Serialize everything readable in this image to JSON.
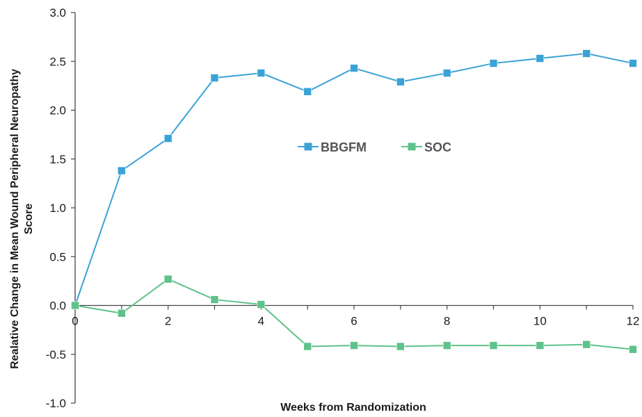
{
  "chart_data": {
    "type": "line",
    "xlabel": "Weeks from Randomization",
    "ylabel_lines": [
      "Realative Change in Mean Wound Peripheral Neuropathy",
      "Score"
    ],
    "xlim": [
      0,
      12
    ],
    "ylim": [
      -1.0,
      3.0
    ],
    "xticks": [
      0,
      2,
      4,
      6,
      8,
      10,
      12
    ],
    "xtick_labels": [
      "0",
      "2",
      "4",
      "6",
      "8",
      "10",
      "12"
    ],
    "yticks": [
      -1.0,
      -0.5,
      0.0,
      0.5,
      1.0,
      1.5,
      2.0,
      2.5,
      3.0
    ],
    "ytick_labels": [
      "-1.0",
      "-0.5",
      "0.0",
      "0.5",
      "1.0",
      "1.5",
      "2.0",
      "2.5",
      "3.0"
    ],
    "grid": false,
    "legend_position": "center",
    "x": [
      0,
      1,
      2,
      3,
      4,
      5,
      6,
      7,
      8,
      9,
      10,
      11,
      12
    ],
    "series": [
      {
        "name": "BBGFM",
        "color": "#3aa3d6",
        "marker": "square",
        "values": [
          0.0,
          1.38,
          1.71,
          2.33,
          2.38,
          2.19,
          2.43,
          2.29,
          2.38,
          2.48,
          2.53,
          2.58,
          2.48
        ]
      },
      {
        "name": "SOC",
        "color": "#5fc28a",
        "marker": "square",
        "values": [
          0.0,
          -0.08,
          0.27,
          0.06,
          0.01,
          -0.42,
          -0.41,
          -0.42,
          -0.41,
          -0.41,
          -0.41,
          -0.4,
          -0.45
        ]
      }
    ]
  }
}
